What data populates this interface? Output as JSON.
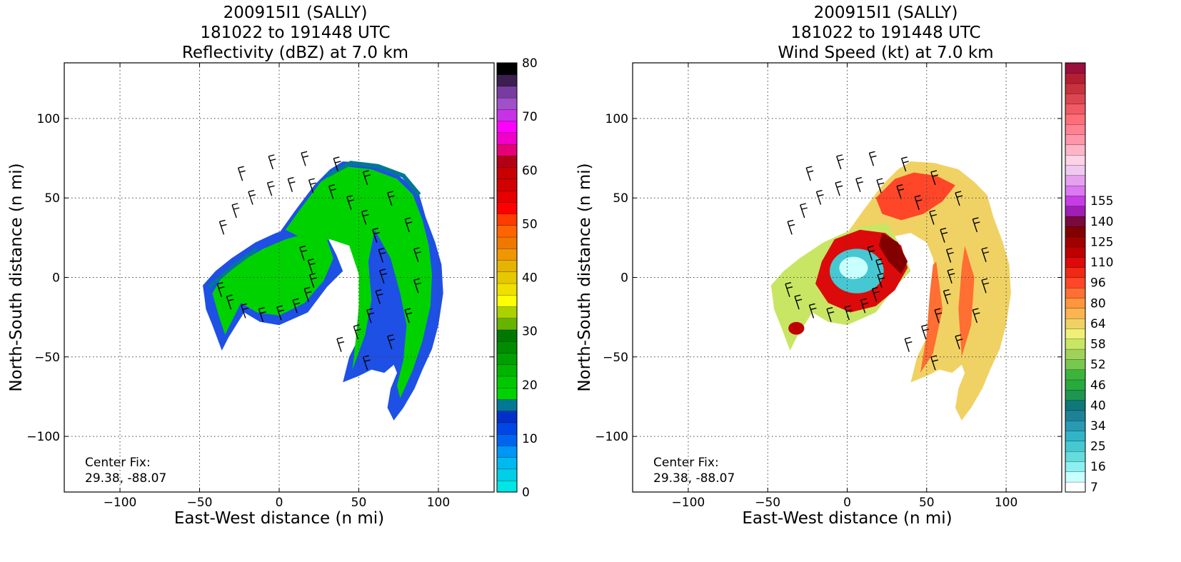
{
  "panels": [
    {
      "id": "reflectivity",
      "title_lines": [
        "200915I1 (SALLY)",
        "181022 to 191448 UTC",
        "Reflectivity (dBZ) at 7.0 km"
      ],
      "xlabel": "East-West distance (n mi)",
      "ylabel": "North-South distance (n mi)",
      "center_fix_label": "Center Fix:",
      "center_fix_value": "29.38, -88.07",
      "colorbar": {
        "colors": [
          "#00e6e6",
          "#00cfe6",
          "#00b9f0",
          "#0096f5",
          "#0064f0",
          "#0046e6",
          "#0030c8",
          "#007896",
          "#00d200",
          "#00c800",
          "#00b400",
          "#00a000",
          "#008c00",
          "#007800",
          "#66b400",
          "#aad200",
          "#ffff00",
          "#f0e000",
          "#e6c800",
          "#e6b400",
          "#f09600",
          "#f07800",
          "#ff6400",
          "#ff3c00",
          "#ff0000",
          "#e60000",
          "#d20000",
          "#c80000",
          "#b40014",
          "#e60078",
          "#f000c8",
          "#ff00ff",
          "#c832e6",
          "#a050c8",
          "#783ca0",
          "#3c1e50",
          "#000000"
        ],
        "tick_labels": [
          "0",
          "10",
          "20",
          "30",
          "40",
          "50",
          "60",
          "70",
          "80"
        ]
      }
    },
    {
      "id": "wind",
      "title_lines": [
        "200915I1 (SALLY)",
        "181022 to 191448 UTC",
        "Wind Speed (kt) at 7.0 km"
      ],
      "xlabel": "East-West distance (n mi)",
      "ylabel": "North-South distance (n mi)",
      "center_fix_label": "Center Fix:",
      "center_fix_value": "29.38, -88.07",
      "colorbar": {
        "colors": [
          "#ffffff",
          "#c8ffff",
          "#8cf0f0",
          "#64dcdc",
          "#46c8d2",
          "#32b4c8",
          "#289ab4",
          "#1e8296",
          "#0f7878",
          "#1e9650",
          "#28aa3c",
          "#3cb43c",
          "#78c850",
          "#a0d25a",
          "#c8e664",
          "#f0f078",
          "#f0d264",
          "#fab450",
          "#ff963c",
          "#ff6e32",
          "#ff4628",
          "#f02814",
          "#dc0a0a",
          "#be0000",
          "#a00000",
          "#820000",
          "#780a3c",
          "#a01eb4",
          "#c83ce6",
          "#dc78f0",
          "#e6a0f0",
          "#f0c8f0",
          "#ffd2e6",
          "#ffb4c8",
          "#ff96aa",
          "#ff8291",
          "#ff6e78",
          "#f05a64",
          "#dc4650",
          "#c8323c",
          "#b41e32",
          "#9b0f3c"
        ],
        "tick_labels": [
          "7",
          "16",
          "25",
          "34",
          "40",
          "46",
          "52",
          "58",
          "64",
          "80",
          "96",
          "110",
          "125",
          "140",
          "155"
        ]
      }
    }
  ],
  "chart_data": [
    {
      "type": "heatmap",
      "title": "200915I1 (SALLY) 181022 to 191448 UTC Reflectivity (dBZ) at 7.0 km",
      "xlabel": "East-West distance (n mi)",
      "ylabel": "North-South distance (n mi)",
      "xlim": [
        -135,
        135
      ],
      "ylim": [
        -135,
        135
      ],
      "xticks": [
        -100,
        -50,
        0,
        50,
        100
      ],
      "yticks": [
        -100,
        -50,
        0,
        50,
        100
      ],
      "grid": true,
      "colorbar": {
        "label_values": [
          0,
          10,
          20,
          30,
          40,
          50,
          60,
          70,
          80
        ],
        "units": "dBZ",
        "range": [
          0,
          80
        ]
      },
      "typical_value_range": [
        10,
        30
      ],
      "wind_barbs": true,
      "center_fix": [
        29.38,
        -88.07
      ]
    },
    {
      "type": "heatmap",
      "title": "200915I1 (SALLY) 181022 to 191448 UTC Wind Speed (kt) at 7.0 km",
      "xlabel": "East-West distance (n mi)",
      "ylabel": "North-South distance (n mi)",
      "xlim": [
        -135,
        135
      ],
      "ylim": [
        -135,
        135
      ],
      "xticks": [
        -100,
        -50,
        0,
        50,
        100
      ],
      "yticks": [
        -100,
        -50,
        0,
        50,
        100
      ],
      "grid": true,
      "colorbar": {
        "label_values": [
          7,
          16,
          25,
          34,
          40,
          46,
          52,
          58,
          64,
          80,
          96,
          110,
          125,
          140,
          155
        ],
        "units": "kt"
      },
      "eye_center": [
        0,
        0
      ],
      "max_wind_region": [
        25,
        15
      ],
      "wind_barbs": true,
      "center_fix": [
        29.38,
        -88.07
      ]
    }
  ]
}
